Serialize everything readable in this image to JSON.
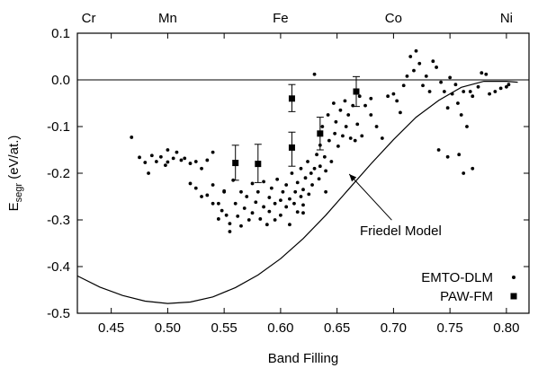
{
  "chart_data": {
    "type": "scatter",
    "xlabel": "Band Filling",
    "ylabel_main": "E",
    "ylabel_sub": "segr",
    "ylabel_rest": " (eV/at.)",
    "xlim": [
      0.42,
      0.82
    ],
    "ylim": [
      -0.5,
      0.1
    ],
    "x_ticks": [
      0.45,
      0.5,
      0.55,
      0.6,
      0.65,
      0.7,
      0.75,
      0.8
    ],
    "x_tick_labels": [
      "0.45",
      "0.50",
      "0.55",
      "0.60",
      "0.65",
      "0.70",
      "0.75",
      "0.80"
    ],
    "y_ticks": [
      -0.5,
      -0.4,
      -0.3,
      -0.2,
      -0.1,
      0.0,
      0.1
    ],
    "y_tick_labels": [
      "-0.5",
      "-0.4",
      "-0.3",
      "-0.2",
      "-0.1",
      "0.0",
      "0.1"
    ],
    "top_axis": {
      "labels": [
        "Cr",
        "Mn",
        "Fe",
        "Co",
        "Ni"
      ],
      "positions": [
        0.43,
        0.5,
        0.6,
        0.7,
        0.8
      ]
    },
    "zero_line": true,
    "grid": false,
    "legend": {
      "placement": "bottom-right",
      "entries": [
        {
          "name": "EMTO-DLM",
          "marker": "dot"
        },
        {
          "name": "PAW-FM",
          "marker": "square"
        }
      ]
    },
    "annotation": {
      "text": "Friedel Model",
      "arrow_to": [
        0.66,
        -0.2
      ],
      "text_at": [
        0.7,
        -0.31
      ]
    },
    "series": [
      {
        "name": "EMTO-DLM",
        "marker": "dot",
        "points": [
          [
            0.468,
            -0.123
          ],
          [
            0.475,
            -0.166
          ],
          [
            0.48,
            -0.177
          ],
          [
            0.483,
            -0.2
          ],
          [
            0.486,
            -0.162
          ],
          [
            0.49,
            -0.175
          ],
          [
            0.494,
            -0.165
          ],
          [
            0.498,
            -0.183
          ],
          [
            0.5,
            -0.176
          ],
          [
            0.505,
            -0.168
          ],
          [
            0.508,
            -0.155
          ],
          [
            0.512,
            -0.172
          ],
          [
            0.515,
            -0.168
          ],
          [
            0.52,
            -0.179
          ],
          [
            0.525,
            -0.175
          ],
          [
            0.53,
            -0.19
          ],
          [
            0.535,
            -0.172
          ],
          [
            0.54,
            -0.155
          ],
          [
            0.52,
            -0.222
          ],
          [
            0.525,
            -0.232
          ],
          [
            0.53,
            -0.25
          ],
          [
            0.535,
            -0.247
          ],
          [
            0.54,
            -0.225
          ],
          [
            0.54,
            -0.265
          ],
          [
            0.545,
            -0.265
          ],
          [
            0.545,
            -0.298
          ],
          [
            0.548,
            -0.28
          ],
          [
            0.55,
            -0.238
          ],
          [
            0.552,
            -0.29
          ],
          [
            0.555,
            -0.308
          ],
          [
            0.555,
            -0.325
          ],
          [
            0.558,
            -0.215
          ],
          [
            0.56,
            -0.265
          ],
          [
            0.562,
            -0.292
          ],
          [
            0.565,
            -0.24
          ],
          [
            0.565,
            -0.313
          ],
          [
            0.568,
            -0.275
          ],
          [
            0.57,
            -0.25
          ],
          [
            0.572,
            -0.3
          ],
          [
            0.575,
            -0.222
          ],
          [
            0.575,
            -0.285
          ],
          [
            0.578,
            -0.262
          ],
          [
            0.58,
            -0.24
          ],
          [
            0.582,
            -0.298
          ],
          [
            0.585,
            -0.218
          ],
          [
            0.585,
            -0.272
          ],
          [
            0.588,
            -0.31
          ],
          [
            0.59,
            -0.252
          ],
          [
            0.59,
            -0.282
          ],
          [
            0.592,
            -0.232
          ],
          [
            0.595,
            -0.3
          ],
          [
            0.595,
            -0.265
          ],
          [
            0.597,
            -0.213
          ],
          [
            0.6,
            -0.258
          ],
          [
            0.6,
            -0.29
          ],
          [
            0.602,
            -0.24
          ],
          [
            0.605,
            -0.272
          ],
          [
            0.605,
            -0.225
          ],
          [
            0.608,
            -0.31
          ],
          [
            0.608,
            -0.255
          ],
          [
            0.61,
            -0.2
          ],
          [
            0.612,
            -0.265
          ],
          [
            0.613,
            -0.24
          ],
          [
            0.615,
            -0.22
          ],
          [
            0.615,
            -0.283
          ],
          [
            0.618,
            -0.19
          ],
          [
            0.618,
            -0.25
          ],
          [
            0.62,
            -0.235
          ],
          [
            0.62,
            -0.268
          ],
          [
            0.622,
            -0.21
          ],
          [
            0.624,
            -0.175
          ],
          [
            0.625,
            -0.245
          ],
          [
            0.627,
            -0.2
          ],
          [
            0.628,
            -0.225
          ],
          [
            0.63,
            -0.19
          ],
          [
            0.632,
            -0.16
          ],
          [
            0.634,
            -0.212
          ],
          [
            0.635,
            -0.185
          ],
          [
            0.635,
            -0.14
          ],
          [
            0.637,
            -0.1
          ],
          [
            0.639,
            -0.165
          ],
          [
            0.64,
            -0.195
          ],
          [
            0.642,
            -0.075
          ],
          [
            0.643,
            -0.13
          ],
          [
            0.645,
            -0.175
          ],
          [
            0.647,
            -0.05
          ],
          [
            0.648,
            -0.115
          ],
          [
            0.649,
            -0.09
          ],
          [
            0.651,
            -0.142
          ],
          [
            0.653,
            -0.065
          ],
          [
            0.655,
            -0.12
          ],
          [
            0.657,
            -0.045
          ],
          [
            0.658,
            -0.1
          ],
          [
            0.66,
            -0.075
          ],
          [
            0.662,
            -0.125
          ],
          [
            0.664,
            -0.055
          ],
          [
            0.666,
            -0.13
          ],
          [
            0.668,
            -0.095
          ],
          [
            0.67,
            -0.035
          ],
          [
            0.672,
            -0.12
          ],
          [
            0.675,
            -0.055
          ],
          [
            0.68,
            -0.075
          ],
          [
            0.685,
            -0.1
          ],
          [
            0.69,
            -0.125
          ],
          [
            0.695,
            -0.035
          ],
          [
            0.7,
            -0.03
          ],
          [
            0.703,
            -0.045
          ],
          [
            0.706,
            -0.07
          ],
          [
            0.709,
            -0.012
          ],
          [
            0.712,
            0.008
          ],
          [
            0.715,
            0.05
          ],
          [
            0.718,
            0.02
          ],
          [
            0.72,
            0.062
          ],
          [
            0.723,
            0.035
          ],
          [
            0.726,
            -0.012
          ],
          [
            0.729,
            0.008
          ],
          [
            0.732,
            -0.025
          ],
          [
            0.735,
            0.04
          ],
          [
            0.738,
            0.027
          ],
          [
            0.742,
            -0.005
          ],
          [
            0.745,
            -0.025
          ],
          [
            0.748,
            -0.06
          ],
          [
            0.75,
            0.005
          ],
          [
            0.752,
            -0.03
          ],
          [
            0.755,
            -0.01
          ],
          [
            0.757,
            -0.05
          ],
          [
            0.76,
            -0.075
          ],
          [
            0.762,
            -0.025
          ],
          [
            0.765,
            -0.1
          ],
          [
            0.768,
            -0.025
          ],
          [
            0.77,
            -0.035
          ],
          [
            0.775,
            -0.015
          ],
          [
            0.778,
            0.015
          ],
          [
            0.782,
            0.012
          ],
          [
            0.785,
            -0.03
          ],
          [
            0.79,
            -0.025
          ],
          [
            0.795,
            -0.018
          ],
          [
            0.8,
            -0.015
          ],
          [
            0.802,
            -0.01
          ],
          [
            0.63,
            0.012
          ],
          [
            0.5,
            -0.15
          ],
          [
            0.55,
            -0.24
          ],
          [
            0.62,
            -0.285
          ],
          [
            0.68,
            -0.04
          ],
          [
            0.64,
            -0.24
          ],
          [
            0.74,
            -0.15
          ],
          [
            0.748,
            -0.165
          ],
          [
            0.762,
            -0.2
          ],
          [
            0.77,
            -0.19
          ],
          [
            0.758,
            -0.16
          ]
        ]
      },
      {
        "name": "PAW-FM",
        "marker": "square",
        "points": [
          {
            "x": 0.56,
            "y": -0.178,
            "err_low": -0.215,
            "err_high": -0.14
          },
          {
            "x": 0.58,
            "y": -0.18,
            "err_low": -0.22,
            "err_high": -0.138
          },
          {
            "x": 0.61,
            "y": -0.145,
            "err_low": -0.185,
            "err_high": -0.112
          },
          {
            "x": 0.61,
            "y": -0.04,
            "err_low": -0.068,
            "err_high": -0.01
          },
          {
            "x": 0.635,
            "y": -0.115,
            "err_low": -0.15,
            "err_high": -0.08
          },
          {
            "x": 0.667,
            "y": -0.025,
            "err_low": -0.057,
            "err_high": 0.007
          }
        ]
      },
      {
        "name": "Friedel Model",
        "type": "line",
        "points": [
          [
            0.42,
            -0.42
          ],
          [
            0.44,
            -0.444
          ],
          [
            0.46,
            -0.462
          ],
          [
            0.48,
            -0.474
          ],
          [
            0.5,
            -0.479
          ],
          [
            0.52,
            -0.476
          ],
          [
            0.54,
            -0.465
          ],
          [
            0.56,
            -0.445
          ],
          [
            0.58,
            -0.418
          ],
          [
            0.6,
            -0.383
          ],
          [
            0.62,
            -0.34
          ],
          [
            0.64,
            -0.29
          ],
          [
            0.66,
            -0.235
          ],
          [
            0.68,
            -0.18
          ],
          [
            0.7,
            -0.128
          ],
          [
            0.72,
            -0.08
          ],
          [
            0.74,
            -0.044
          ],
          [
            0.76,
            -0.016
          ],
          [
            0.78,
            -0.003
          ],
          [
            0.8,
            -0.003
          ],
          [
            0.81,
            -0.005
          ]
        ]
      }
    ]
  }
}
